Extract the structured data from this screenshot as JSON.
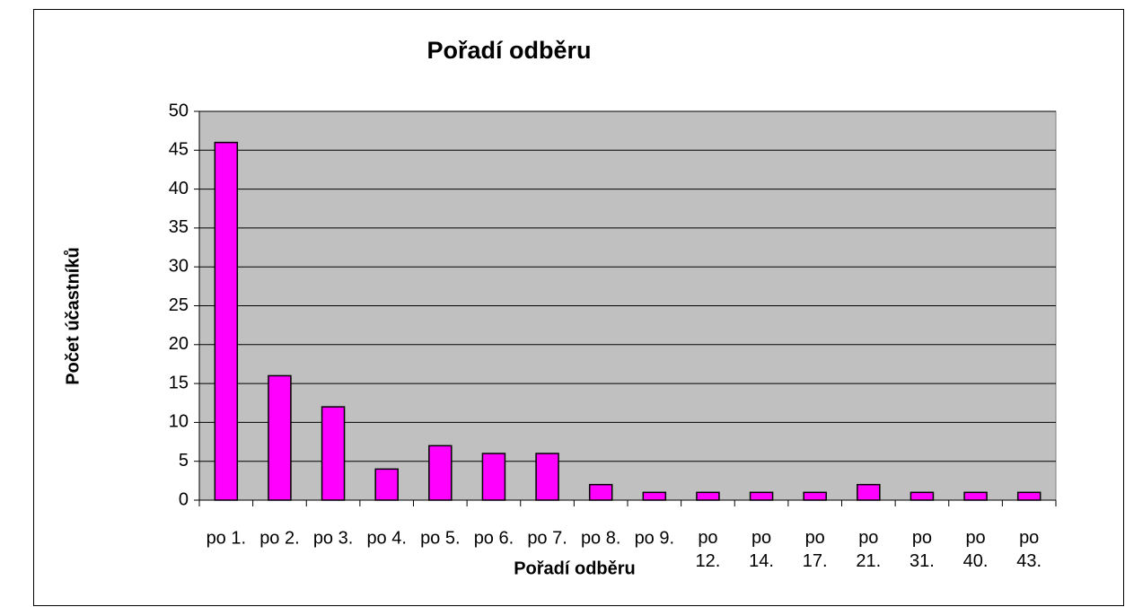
{
  "chart_data": {
    "type": "bar",
    "title": "Pořadí odběru",
    "x_label": "Pořadí odběru",
    "y_label": "Počet účastníků",
    "categories": [
      "po 1.",
      "po 2.",
      "po 3.",
      "po 4.",
      "po 5.",
      "po 6.",
      "po 7.",
      "po 8.",
      "po 9.",
      "po 12.",
      "po 14.",
      "po 17.",
      "po 21.",
      "po 31.",
      "po 40.",
      "po 43."
    ],
    "values": [
      46,
      16,
      12,
      4,
      7,
      6,
      6,
      2,
      1,
      1,
      1,
      1,
      2,
      1,
      1,
      1
    ],
    "color": "#ff00ff",
    "ylim": [
      0,
      50
    ],
    "yticks": [
      0,
      5,
      10,
      15,
      20,
      25,
      30,
      35,
      40,
      45,
      50
    ],
    "grid": true
  }
}
